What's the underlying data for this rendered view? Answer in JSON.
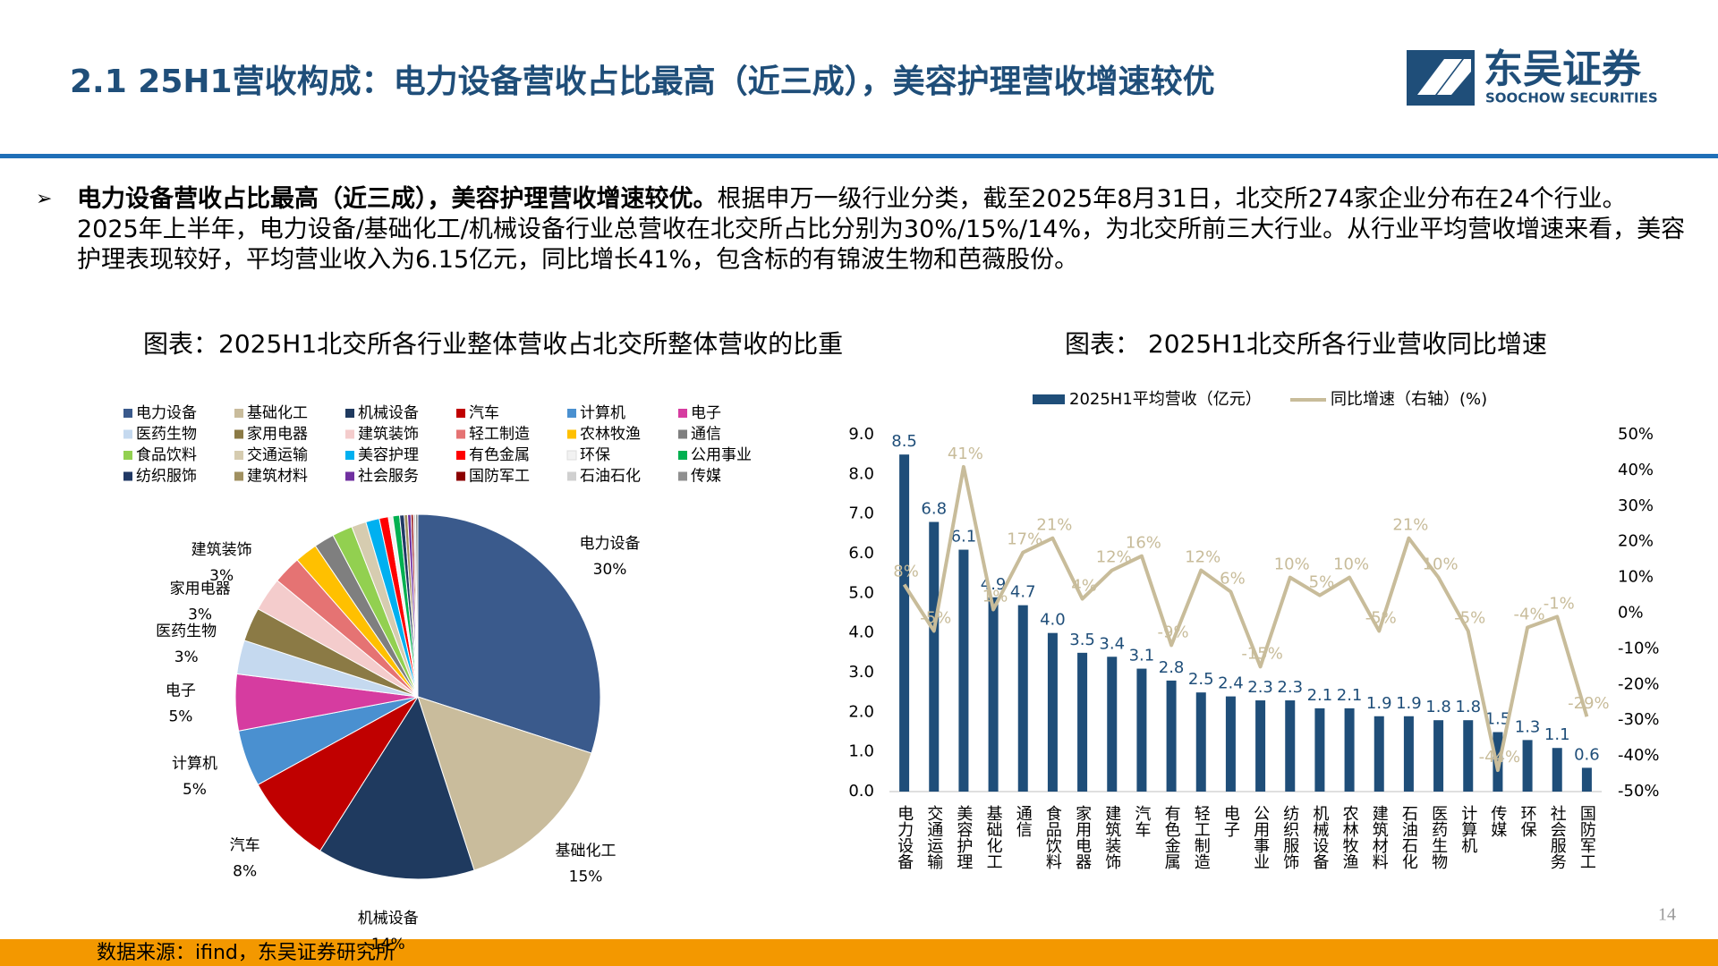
{
  "header": {
    "title": "2.1 25H1营收构成：电力设备营收占比最高（近三成），美容护理营收增速较优",
    "logo_cn": "东吴证券",
    "logo_en": "SOOCHOW SECURITIES"
  },
  "bullet": {
    "bold": "电力设备营收占比最高（近三成），美容护理营收增速较优。",
    "text": "根据申万一级行业分类，截至2025年8月31日，北交所274家企业分布在24个行业。2025年上半年，电力设备/基础化工/机械设备行业总营收在北交所占比分别为30%/15%/14%，为北交所前三大行业。从行业平均营收增速来看，美容护理表现较好，平均营业收入为6.15亿元，同比增长41%，包含标的有锦波生物和芭薇股份。"
  },
  "chart_data": [
    {
      "type": "pie",
      "title": "图表：2025H1北交所各行业整体营收占北交所整体营收的比重",
      "categories": [
        "电力设备",
        "基础化工",
        "机械设备",
        "汽车",
        "计算机",
        "电子",
        "医药生物",
        "家用电器",
        "建筑装饰",
        "轻工制造",
        "农林牧渔",
        "通信",
        "食品饮料",
        "交通运输",
        "美容护理",
        "有色金属",
        "环保",
        "公用事业",
        "纺织服饰",
        "建筑材料",
        "社会服务",
        "国防军工",
        "石油石化",
        "传媒"
      ],
      "values": [
        30,
        15,
        14,
        8,
        5,
        5,
        3,
        3,
        3,
        2.5,
        2,
        1.8,
        1.8,
        1.3,
        1.2,
        0.8,
        0.4,
        0.6,
        0.4,
        0.3,
        0.3,
        0.2,
        0.2,
        0.2
      ],
      "value_labels": [
        "30%",
        "15%",
        "14%",
        "8%",
        "5%",
        "5%",
        "3%",
        "3%",
        "3%",
        null,
        null,
        null,
        null,
        null,
        null,
        null,
        null,
        null,
        null,
        null,
        null,
        null,
        null,
        null
      ],
      "colors": [
        "#3a5a8c",
        "#c9bc9c",
        "#1f3a5f",
        "#c00000",
        "#4a90d0",
        "#d63ca0",
        "#c5d9ef",
        "#8b7a45",
        "#f4cccc",
        "#e57373",
        "#ffc000",
        "#7f7f7f",
        "#92d050",
        "#d6ccb0",
        "#00b0f0",
        "#ff0000",
        "#f2f2f2",
        "#00b050",
        "#203864",
        "#a09060",
        "#7030a0",
        "#8b0000",
        "#d0d0d0",
        "#909090"
      ],
      "legend": "top"
    },
    {
      "type": "bar",
      "title": "图表： 2025H1北交所各行业营收同比增速",
      "categories": [
        "电力设备",
        "交通运输",
        "美容护理",
        "基础化工",
        "通信",
        "食品饮料",
        "家用电器",
        "建筑装饰",
        "汽车",
        "有色金属",
        "轻工制造",
        "电子",
        "公用事业",
        "纺织服饰",
        "机械设备",
        "农林牧渔",
        "建筑材料",
        "石油石化",
        "医药生物",
        "计算机",
        "传媒",
        "环保",
        "社会服务",
        "国防军工"
      ],
      "series": [
        {
          "name": "2025H1平均营收（亿元）",
          "type": "bar",
          "color": "#1f4e79",
          "values": [
            8.5,
            6.8,
            6.1,
            4.9,
            4.7,
            4.0,
            3.5,
            3.4,
            3.1,
            2.8,
            2.5,
            2.4,
            2.3,
            2.3,
            2.1,
            2.1,
            1.9,
            1.9,
            1.8,
            1.8,
            1.5,
            1.3,
            1.1,
            0.6
          ],
          "value_labels": [
            "8.5",
            "6.8",
            "6.1",
            "4.9",
            "4.7",
            "4.0",
            "3.5",
            "3.4",
            "3.1",
            "2.8",
            "2.5",
            "2.4",
            "2.3",
            "2.3",
            "2.1",
            "2.1",
            "1.9",
            "1.9",
            "1.8",
            "1.8",
            "1.5",
            "1.3",
            "1.1",
            "0.6"
          ]
        },
        {
          "name": "同比增速（右轴）(%)",
          "type": "line",
          "axis": "y2",
          "color": "#c8bc9a",
          "values": [
            8,
            -5,
            41,
            1,
            17,
            21,
            4,
            12,
            16,
            -9,
            12,
            6,
            -15,
            10,
            5,
            10,
            -5,
            21,
            10,
            -5,
            -44,
            -4,
            -1,
            -29
          ],
          "value_labels": [
            "8%",
            "-5%",
            "41%",
            "1%",
            "17%",
            "21%",
            "4%",
            "12%",
            "16%",
            "-9%",
            "12%",
            "6%",
            "-15%",
            "10%",
            "5%",
            "10%",
            "-5%",
            "21%",
            "10%",
            "-5%",
            "-44%",
            "-4%",
            "-1%",
            "-29%"
          ]
        }
      ],
      "ylim": [
        0,
        9
      ],
      "yticks": [
        {
          "value": 0,
          "label": "0.0"
        },
        {
          "value": 1,
          "label": "1.0"
        },
        {
          "value": 2,
          "label": "2.0"
        },
        {
          "value": 3,
          "label": "3.0"
        },
        {
          "value": 4,
          "label": "4.0"
        },
        {
          "value": 5,
          "label": "5.0"
        },
        {
          "value": 6,
          "label": "6.0"
        },
        {
          "value": 7,
          "label": "7.0"
        },
        {
          "value": 8,
          "label": "8.0"
        },
        {
          "value": 9,
          "label": "9.0"
        }
      ],
      "y2lim": [
        -50,
        50
      ],
      "y2ticks": [
        {
          "value": -50,
          "label": "-50%"
        },
        {
          "value": -40,
          "label": "-40%"
        },
        {
          "value": -30,
          "label": "-30%"
        },
        {
          "value": -20,
          "label": "-20%"
        },
        {
          "value": -10,
          "label": "-10%"
        },
        {
          "value": 0,
          "label": "0%"
        },
        {
          "value": 10,
          "label": "10%"
        },
        {
          "value": 20,
          "label": "20%"
        },
        {
          "value": 30,
          "label": "30%"
        },
        {
          "value": 40,
          "label": "40%"
        },
        {
          "value": 50,
          "label": "50%"
        }
      ],
      "legend": "top",
      "grid": false
    }
  ],
  "footer": {
    "source": "数据来源：ifind，东吴证券研究所",
    "page": "14"
  }
}
